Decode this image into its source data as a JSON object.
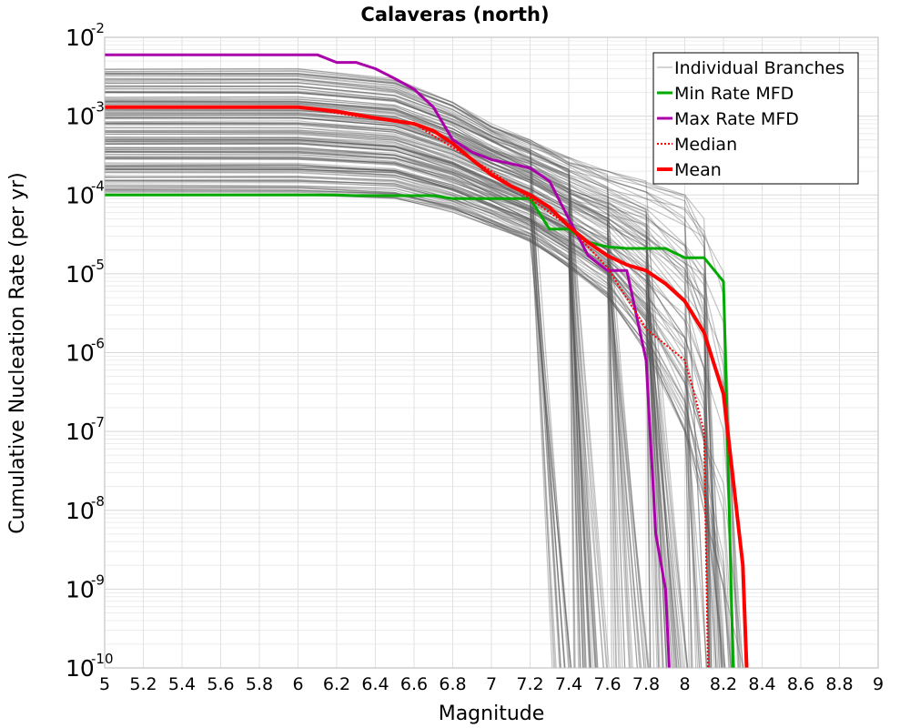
{
  "chart_data": {
    "type": "line",
    "title": "Calaveras (north)",
    "xlabel": "Magnitude",
    "ylabel": "Cumulative Nucleation Rate (per yr)",
    "xlim": [
      5,
      9
    ],
    "ylim": [
      1e-10,
      0.01
    ],
    "yscale": "log",
    "grid": true,
    "legend_position": "top-right",
    "x_ticks": [
      "5",
      "5.2",
      "5.4",
      "5.6",
      "5.8",
      "6",
      "6.2",
      "6.4",
      "6.6",
      "6.8",
      "7",
      "7.2",
      "7.4",
      "7.6",
      "7.8",
      "8",
      "8.2",
      "8.4",
      "8.6",
      "8.8",
      "9"
    ],
    "y_ticks": [
      {
        "base": "10",
        "exp": "-10",
        "value": 1e-10
      },
      {
        "base": "10",
        "exp": "-9",
        "value": 1e-09
      },
      {
        "base": "10",
        "exp": "-8",
        "value": 1e-08
      },
      {
        "base": "10",
        "exp": "-7",
        "value": 1e-07
      },
      {
        "base": "10",
        "exp": "-6",
        "value": 1e-06
      },
      {
        "base": "10",
        "exp": "-5",
        "value": 1e-05
      },
      {
        "base": "10",
        "exp": "-4",
        "value": 0.0001
      },
      {
        "base": "10",
        "exp": "-3",
        "value": 0.001
      },
      {
        "base": "10",
        "exp": "-2",
        "value": 0.01
      }
    ],
    "series": [
      {
        "name": "Individual Branches",
        "color": "#555555",
        "style": "thin",
        "x": [
          5.0,
          6.0,
          6.5,
          6.8,
          7.0,
          7.2,
          7.4,
          7.6,
          7.8,
          8.0,
          8.1,
          8.2,
          8.3
        ],
        "values_low": [
          0.0001,
          0.0001,
          9e-05,
          6e-05,
          4e-05,
          2.5e-05,
          1.2e-05,
          5e-06,
          1e-06,
          1e-07,
          1e-08,
          1e-09,
          1e-10
        ],
        "values_high": [
          0.004,
          0.004,
          0.003,
          0.0015,
          0.0008,
          0.0005,
          0.0003,
          0.0002,
          0.00015,
          0.0001,
          5e-05,
          1.5e-05,
          1e-07
        ]
      },
      {
        "name": "Min Rate MFD",
        "color": "#00aa00",
        "style": "solid",
        "x": [
          5.0,
          6.2,
          6.3,
          6.7,
          6.8,
          7.0,
          7.2,
          7.3,
          7.4,
          7.5,
          7.6,
          7.7,
          7.9,
          8.0,
          8.1,
          8.2,
          8.21,
          8.25
        ],
        "values": [
          0.0001,
          0.0001,
          9.8e-05,
          9.8e-05,
          9e-05,
          9e-05,
          9e-05,
          3.7e-05,
          3.7e-05,
          2.5e-05,
          2.2e-05,
          2.1e-05,
          2.1e-05,
          1.6e-05,
          1.6e-05,
          8e-06,
          1e-06,
          1e-10
        ]
      },
      {
        "name": "Max Rate MFD",
        "color": "#aa00aa",
        "style": "solid",
        "x": [
          5.0,
          6.1,
          6.2,
          6.3,
          6.4,
          6.5,
          6.6,
          6.7,
          6.8,
          6.9,
          7.0,
          7.1,
          7.2,
          7.3,
          7.4,
          7.5,
          7.6,
          7.7,
          7.8,
          7.85,
          7.9,
          7.92
        ],
        "values": [
          0.006,
          0.006,
          0.0048,
          0.0048,
          0.004,
          0.003,
          0.0022,
          0.0013,
          0.0005,
          0.00035,
          0.00028,
          0.00025,
          0.00022,
          0.00015,
          5e-05,
          1.7e-05,
          1.1e-05,
          1.1e-05,
          8e-07,
          5e-09,
          1e-09,
          1e-10
        ]
      },
      {
        "name": "Median",
        "color": "#ff0000",
        "style": "dotted",
        "x": [
          5.0,
          6.0,
          6.3,
          6.6,
          6.8,
          7.0,
          7.2,
          7.4,
          7.6,
          7.8,
          8.0,
          8.05,
          8.1,
          8.12
        ],
        "values": [
          0.0013,
          0.0013,
          0.001,
          0.0008,
          0.0004,
          0.0002,
          9e-05,
          4e-05,
          1.2e-05,
          2e-06,
          8e-07,
          3e-07,
          1e-07,
          1e-10
        ]
      },
      {
        "name": "Mean",
        "color": "#ff0000",
        "style": "thick",
        "x": [
          5.0,
          6.0,
          6.2,
          6.4,
          6.6,
          6.7,
          6.8,
          6.9,
          7.0,
          7.1,
          7.2,
          7.3,
          7.4,
          7.5,
          7.6,
          7.7,
          7.8,
          7.9,
          8.0,
          8.1,
          8.2,
          8.3,
          8.32
        ],
        "values": [
          0.0013,
          0.0013,
          0.00115,
          0.00095,
          0.0008,
          0.00065,
          0.00045,
          0.00028,
          0.00018,
          0.00013,
          0.0001,
          7e-05,
          4e-05,
          2.5e-05,
          1.7e-05,
          1.3e-05,
          1.1e-05,
          7.5e-06,
          4.5e-06,
          1.8e-06,
          3e-07,
          2e-09,
          1e-10
        ]
      }
    ]
  }
}
